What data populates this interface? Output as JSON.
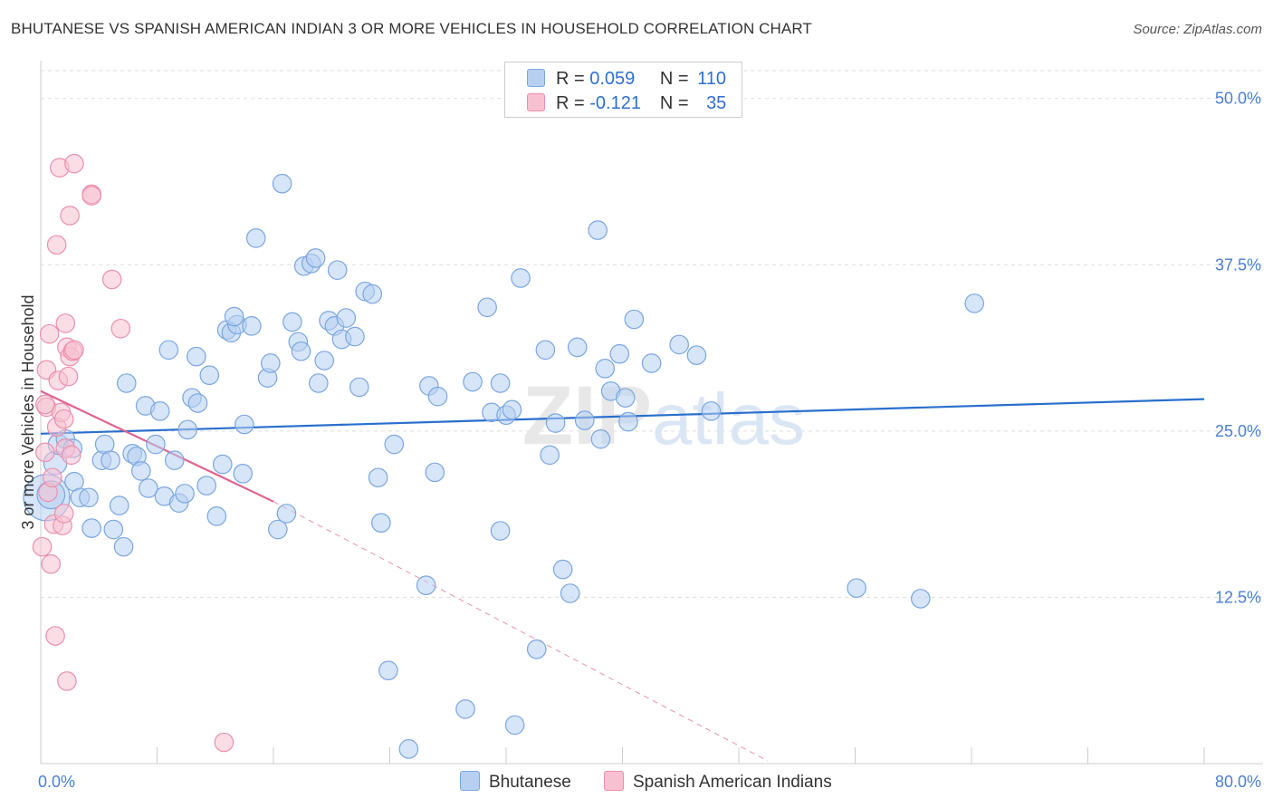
{
  "title": "BHUTANESE VS SPANISH AMERICAN INDIAN 3 OR MORE VEHICLES IN HOUSEHOLD CORRELATION CHART",
  "source": "Source: ZipAtlas.com",
  "watermark": {
    "zip": "ZIP",
    "atlas": "atlas"
  },
  "colors": {
    "blue_fill": "#b7d0f2",
    "blue_stroke": "#7aa6e0",
    "blue_line": "#2a6fcc",
    "pink_fill": "#f7c1d2",
    "pink_stroke": "#eb8fae",
    "pink_line": "#e0628f",
    "grid": "#dddddd",
    "axis_text": "#4a7fd0"
  },
  "legend": {
    "rows": [
      {
        "r_label": "R =",
        "r_value": "0.059",
        "n_label": "N =",
        "n_value": "110"
      },
      {
        "r_label": "R =",
        "r_value": "-0.121",
        "n_label": "N =",
        "n_value": "35"
      }
    ]
  },
  "bottom_legend": [
    "Bhutanese",
    "Spanish American Indians"
  ],
  "chart_data": {
    "type": "scatter",
    "title": "BHUTANESE VS SPANISH AMERICAN INDIAN 3 OR MORE VEHICLES IN HOUSEHOLD CORRELATION CHART",
    "xlabel": "",
    "ylabel": "3 or more Vehicles in Household",
    "xlim": [
      0,
      80
    ],
    "ylim": [
      0,
      52.5
    ],
    "x_tick_labels": [
      "0.0%",
      "80.0%"
    ],
    "y_ticks": [
      12.5,
      25.0,
      37.5,
      50.0
    ],
    "y_tick_labels": [
      "12.5%",
      "25.0%",
      "37.5%",
      "50.0%"
    ],
    "grid": true,
    "legend_position": "top-center",
    "series": [
      {
        "name": "Bhutanese",
        "trend": {
          "x": [
            0,
            80
          ],
          "y": [
            24.8,
            27.4
          ]
        },
        "points": [
          [
            0.4,
            20.0,
            3
          ],
          [
            1.0,
            22.6,
            1.5
          ],
          [
            1.2,
            24.0,
            1.3
          ],
          [
            1.7,
            24.4,
            1.2
          ],
          [
            2.3,
            21.2,
            1.2
          ],
          [
            2.7,
            20.0,
            1.2
          ],
          [
            2.2,
            23.7,
            1.2
          ],
          [
            3.3,
            20.0,
            1.2
          ],
          [
            3.5,
            17.7,
            1.2
          ],
          [
            4.2,
            22.8,
            1.2
          ],
          [
            4.4,
            24.0,
            1.2
          ],
          [
            4.8,
            22.8,
            1.2
          ],
          [
            5.0,
            17.6,
            1.2
          ],
          [
            5.4,
            19.4,
            1.2
          ],
          [
            5.7,
            16.3,
            1.2
          ],
          [
            5.9,
            28.6,
            1.2
          ],
          [
            6.3,
            23.3,
            1.2
          ],
          [
            6.6,
            23.1,
            1.2
          ],
          [
            6.9,
            22.0,
            1.2
          ],
          [
            7.2,
            26.9,
            1.2
          ],
          [
            7.4,
            20.7,
            1.2
          ],
          [
            7.9,
            24.0,
            1.2
          ],
          [
            8.2,
            26.5,
            1.2
          ],
          [
            8.5,
            20.1,
            1.2
          ],
          [
            8.8,
            31.1,
            1.2
          ],
          [
            9.2,
            22.8,
            1.2
          ],
          [
            9.5,
            19.6,
            1.2
          ],
          [
            9.9,
            20.3,
            1.2
          ],
          [
            10.1,
            25.1,
            1.2
          ],
          [
            10.4,
            27.5,
            1.2
          ],
          [
            10.8,
            27.1,
            1.2
          ],
          [
            10.7,
            30.6,
            1.2
          ],
          [
            11.6,
            29.2,
            1.2
          ],
          [
            11.4,
            20.9,
            1.2
          ],
          [
            12.1,
            18.6,
            1.2
          ],
          [
            12.5,
            22.5,
            1.2
          ],
          [
            12.8,
            32.6,
            1.2
          ],
          [
            13.1,
            32.4,
            1.2
          ],
          [
            13.5,
            33.0,
            1.2
          ],
          [
            13.3,
            33.6,
            1.2
          ],
          [
            13.9,
            21.8,
            1.2
          ],
          [
            14.0,
            25.5,
            1.2
          ],
          [
            14.5,
            32.9,
            1.2
          ],
          [
            14.8,
            39.5,
            1.2
          ],
          [
            15.6,
            29.0,
            1.2
          ],
          [
            15.8,
            30.1,
            1.2
          ],
          [
            16.3,
            17.6,
            1.2
          ],
          [
            16.6,
            43.6,
            1.2
          ],
          [
            16.9,
            18.8,
            1.2
          ],
          [
            17.3,
            33.2,
            1.2
          ],
          [
            17.7,
            31.7,
            1.2
          ],
          [
            17.9,
            31.0,
            1.2
          ],
          [
            18.1,
            37.4,
            1.2
          ],
          [
            18.6,
            37.6,
            1.2
          ],
          [
            18.9,
            38.0,
            1.2
          ],
          [
            19.1,
            28.6,
            1.2
          ],
          [
            19.5,
            30.3,
            1.2
          ],
          [
            19.8,
            33.3,
            1.2
          ],
          [
            20.2,
            32.9,
            1.2
          ],
          [
            20.4,
            37.1,
            1.2
          ],
          [
            20.7,
            31.9,
            1.2
          ],
          [
            21.0,
            33.5,
            1.2
          ],
          [
            21.6,
            32.1,
            1.2
          ],
          [
            21.9,
            28.3,
            1.2
          ],
          [
            22.3,
            35.5,
            1.2
          ],
          [
            22.8,
            35.3,
            1.2
          ],
          [
            23.2,
            21.5,
            1.2
          ],
          [
            23.4,
            18.1,
            1.2
          ],
          [
            23.9,
            7.0,
            1.2
          ],
          [
            24.3,
            24.0,
            1.2
          ],
          [
            25.3,
            1.1,
            1.2
          ],
          [
            26.5,
            13.4,
            1.2
          ],
          [
            26.7,
            28.4,
            1.2
          ],
          [
            27.1,
            21.9,
            1.2
          ],
          [
            27.3,
            27.6,
            1.2
          ],
          [
            29.2,
            4.1,
            1.2
          ],
          [
            29.7,
            28.7,
            1.2
          ],
          [
            30.7,
            34.3,
            1.2
          ],
          [
            31.0,
            26.4,
            1.2
          ],
          [
            31.6,
            28.6,
            1.2
          ],
          [
            31.6,
            17.5,
            1.2
          ],
          [
            32.0,
            26.2,
            1.2
          ],
          [
            32.4,
            26.6,
            1.2
          ],
          [
            32.6,
            2.9,
            1.2
          ],
          [
            33.0,
            36.5,
            1.2
          ],
          [
            34.1,
            8.6,
            1.2
          ],
          [
            34.7,
            31.1,
            1.2
          ],
          [
            35.0,
            23.2,
            1.2
          ],
          [
            35.4,
            25.6,
            1.2
          ],
          [
            35.9,
            14.6,
            1.2
          ],
          [
            36.4,
            12.8,
            1.2
          ],
          [
            36.9,
            31.3,
            1.2
          ],
          [
            37.4,
            25.8,
            1.2
          ],
          [
            38.3,
            40.1,
            1.2
          ],
          [
            38.5,
            24.4,
            1.2
          ],
          [
            38.8,
            29.7,
            1.2
          ],
          [
            39.2,
            28.0,
            1.2
          ],
          [
            39.8,
            30.8,
            1.2
          ],
          [
            40.2,
            27.5,
            1.2
          ],
          [
            40.4,
            25.7,
            1.2
          ],
          [
            40.8,
            33.4,
            1.2
          ],
          [
            42.0,
            30.1,
            1.2
          ],
          [
            43.9,
            31.5,
            1.2
          ],
          [
            45.1,
            30.7,
            1.2
          ],
          [
            46.1,
            26.5,
            1.2
          ],
          [
            56.1,
            13.2,
            1.2
          ],
          [
            60.5,
            12.4,
            1.2
          ],
          [
            64.2,
            34.6,
            1.2
          ],
          [
            0.7,
            20.2,
            1.8
          ]
        ]
      },
      {
        "name": "Spanish American Indians",
        "trend": {
          "x": [
            0,
            16
          ],
          "y": [
            28.0,
            19.7
          ],
          "dashed_to": [
            50,
            0.2
          ]
        },
        "points": [
          [
            0.1,
            16.3,
            1.2
          ],
          [
            0.3,
            23.4,
            1.2
          ],
          [
            0.4,
            26.8,
            1.2
          ],
          [
            0.4,
            29.6,
            1.2
          ],
          [
            0.5,
            20.4,
            1.2
          ],
          [
            0.7,
            15.0,
            1.2
          ],
          [
            0.8,
            21.5,
            1.2
          ],
          [
            0.9,
            18.0,
            1.2
          ],
          [
            0.6,
            32.3,
            1.2
          ],
          [
            1.0,
            9.6,
            1.2
          ],
          [
            1.1,
            25.3,
            1.2
          ],
          [
            1.1,
            39.0,
            1.2
          ],
          [
            1.2,
            28.8,
            1.2
          ],
          [
            1.3,
            44.8,
            1.2
          ],
          [
            1.4,
            26.4,
            1.2
          ],
          [
            1.5,
            17.9,
            1.2
          ],
          [
            1.6,
            25.9,
            1.2
          ],
          [
            1.6,
            18.8,
            1.2
          ],
          [
            1.7,
            23.7,
            1.2
          ],
          [
            1.7,
            33.1,
            1.2
          ],
          [
            1.8,
            31.3,
            1.2
          ],
          [
            1.8,
            6.2,
            1.2
          ],
          [
            1.9,
            29.1,
            1.2
          ],
          [
            2.0,
            30.6,
            1.2
          ],
          [
            2.0,
            41.2,
            1.2
          ],
          [
            2.2,
            31.0,
            1.2
          ],
          [
            2.3,
            31.1,
            1.2
          ],
          [
            2.1,
            23.2,
            1.2
          ],
          [
            2.3,
            45.1,
            1.2
          ],
          [
            3.5,
            42.8,
            1.2
          ],
          [
            3.5,
            42.7,
            1.2
          ],
          [
            4.9,
            36.4,
            1.2
          ],
          [
            5.5,
            32.7,
            1.2
          ],
          [
            12.6,
            1.6,
            1.2
          ],
          [
            0.3,
            27.0,
            1.2
          ]
        ]
      }
    ]
  }
}
